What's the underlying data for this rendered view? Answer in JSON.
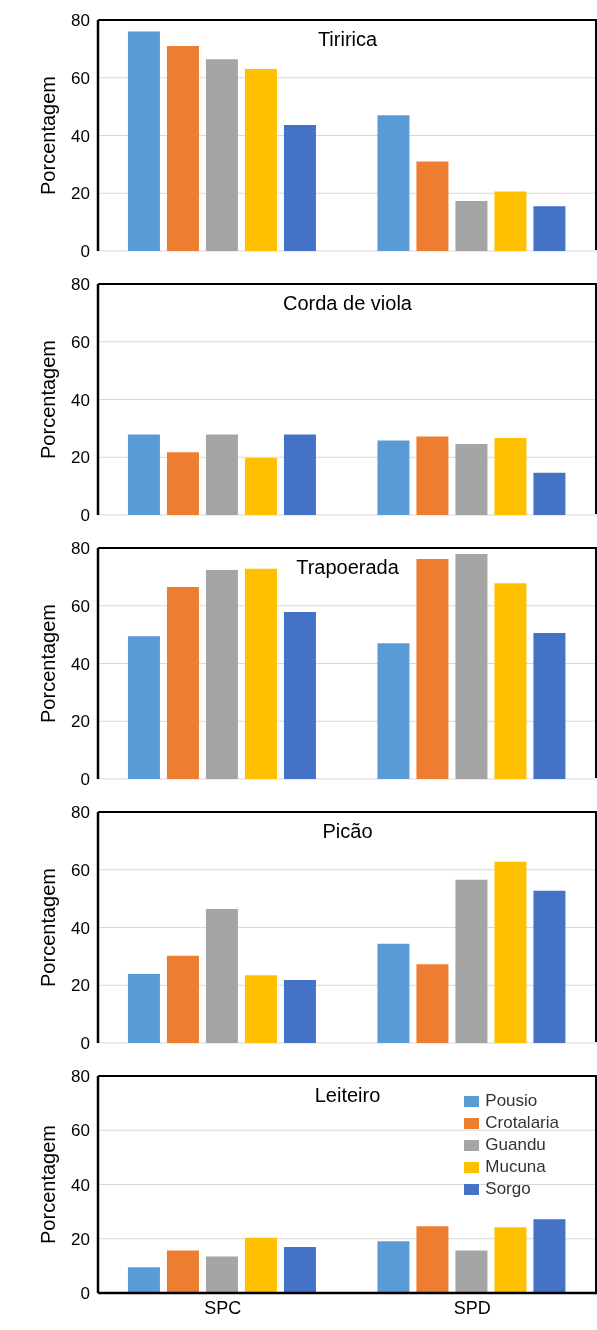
{
  "chart_data": [
    {
      "type": "bar",
      "title": "Tiririca",
      "ylabel": "Porcentagem",
      "categories": [
        null,
        null
      ],
      "ylim": [
        0,
        80
      ],
      "yticks": [
        0,
        20,
        40,
        60,
        80
      ],
      "grid": "y",
      "tick_labels": "y",
      "series": [
        {
          "color": "#5b9bd5",
          "values": [
            76,
            47
          ]
        },
        {
          "color": "#ed7d31",
          "values": [
            71,
            31
          ]
        },
        {
          "color": "#a5a5a5",
          "values": [
            66.4,
            17.3
          ]
        },
        {
          "color": "#ffc000",
          "values": [
            63,
            20.6
          ]
        },
        {
          "color": "#4472c4",
          "values": [
            43.6,
            15.5
          ]
        }
      ]
    },
    {
      "type": "bar",
      "title": "Corda de viola",
      "ylabel": "Porcentagem",
      "categories": [
        null,
        null
      ],
      "ylim": [
        0,
        80
      ],
      "yticks": [
        0,
        20,
        40,
        60,
        80
      ],
      "grid": "y",
      "tick_labels": "y",
      "series": [
        {
          "color": "#5b9bd5",
          "values": [
            27.9,
            25.8
          ]
        },
        {
          "color": "#ed7d31",
          "values": [
            21.7,
            27.2
          ]
        },
        {
          "color": "#a5a5a5",
          "values": [
            27.9,
            24.6
          ]
        },
        {
          "color": "#ffc000",
          "values": [
            19.7,
            26.7
          ]
        },
        {
          "color": "#4472c4",
          "values": [
            27.9,
            14.6
          ]
        }
      ]
    },
    {
      "type": "bar",
      "title": "Trapoerada",
      "ylabel": "Porcentagem",
      "categories": [
        null,
        null
      ],
      "ylim": [
        0,
        80
      ],
      "yticks": [
        0,
        20,
        40,
        60,
        80
      ],
      "grid": "y",
      "tick_labels": "y",
      "series": [
        {
          "color": "#5b9bd5",
          "values": [
            49.4,
            47
          ]
        },
        {
          "color": "#ed7d31",
          "values": [
            66.5,
            76.2
          ]
        },
        {
          "color": "#a5a5a5",
          "values": [
            72.4,
            77.9
          ]
        },
        {
          "color": "#ffc000",
          "values": [
            72.8,
            67.8
          ]
        },
        {
          "color": "#4472c4",
          "values": [
            57.8,
            50.6
          ]
        }
      ]
    },
    {
      "type": "bar",
      "title": "Picão",
      "ylabel": "Porcentagem",
      "categories": [
        null,
        null
      ],
      "ylim": [
        0,
        80
      ],
      "yticks": [
        0,
        20,
        40,
        60,
        80
      ],
      "grid": "y",
      "tick_labels": "y",
      "series": [
        {
          "color": "#5b9bd5",
          "values": [
            23.9,
            34.4
          ]
        },
        {
          "color": "#ed7d31",
          "values": [
            30.2,
            27.3
          ]
        },
        {
          "color": "#a5a5a5",
          "values": [
            46.4,
            56.5
          ]
        },
        {
          "color": "#ffc000",
          "values": [
            23.5,
            62.8
          ]
        },
        {
          "color": "#4472c4",
          "values": [
            21.8,
            52.7
          ]
        }
      ]
    },
    {
      "type": "bar",
      "title": "Leiteiro",
      "ylabel": "Porcentagem",
      "categories": [
        "SPC",
        "SPD"
      ],
      "ylim": [
        0,
        80
      ],
      "yticks": [
        0,
        20,
        40,
        60,
        80
      ],
      "grid": "y",
      "legend": "top right",
      "series": [
        {
          "name": "Pousio",
          "color": "#5b9bd5",
          "values": [
            9.5,
            19.1
          ]
        },
        {
          "name": "Crotalaria",
          "color": "#ed7d31",
          "values": [
            15.7,
            24.6
          ]
        },
        {
          "name": "Guandu",
          "color": "#a5a5a5",
          "values": [
            13.5,
            15.7
          ]
        },
        {
          "name": "Mucuna",
          "color": "#ffc000",
          "values": [
            20.4,
            24.2
          ]
        },
        {
          "name": "Sorgo",
          "color": "#4472c4",
          "values": [
            17,
            27.2
          ]
        }
      ]
    }
  ]
}
